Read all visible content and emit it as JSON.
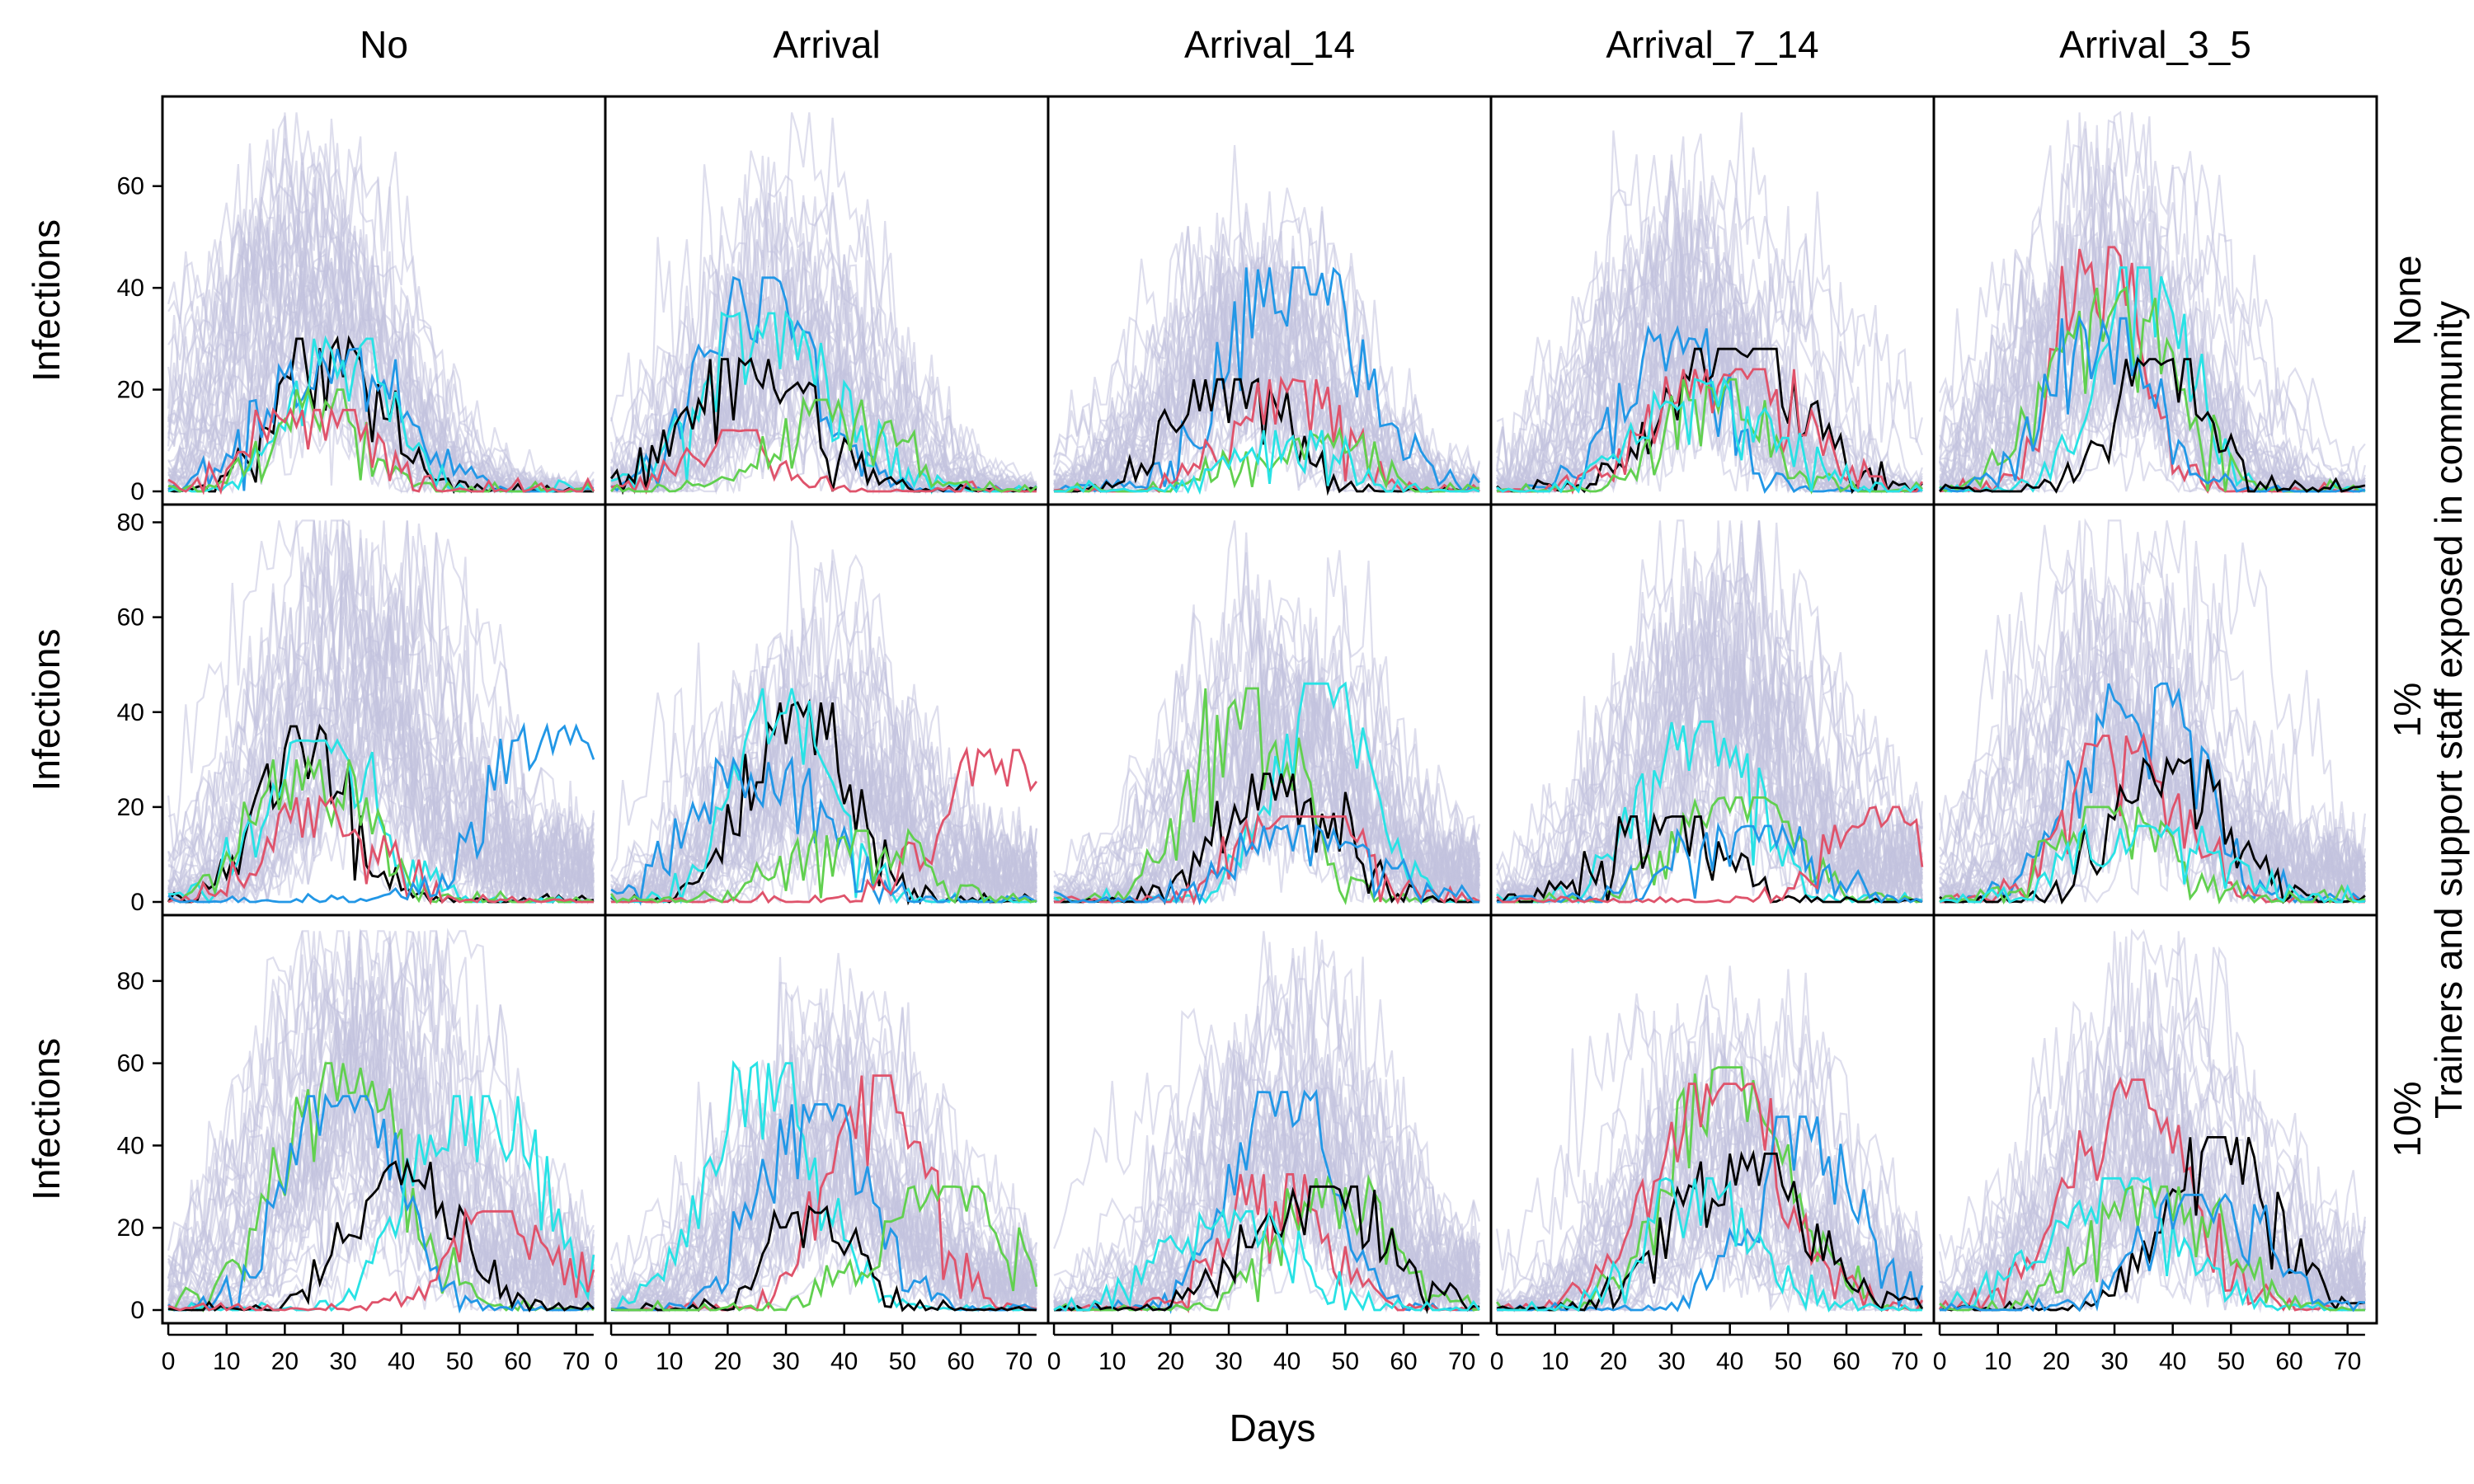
{
  "chart_data": {
    "type": "line",
    "columns": [
      "No",
      "Arrival",
      "Arrival_14",
      "Arrival_7_14",
      "Arrival_3_5"
    ],
    "rows": [
      {
        "label_lines": [
          "None"
        ],
        "yticks": [
          0,
          20,
          40,
          60
        ],
        "ylim": [
          0,
          76
        ]
      },
      {
        "label_lines": [
          "1%"
        ],
        "yticks": [
          0,
          20,
          40,
          60,
          80
        ],
        "ylim": [
          0,
          82
        ]
      },
      {
        "label_lines": [
          "10%",
          "Trainers and support staff exposed in community"
        ],
        "yticks": [
          0,
          20,
          40,
          60,
          80
        ],
        "ylim": [
          0,
          94
        ]
      }
    ],
    "right_axis_title": "Trainers and support staff exposed in community",
    "ylabel": "Infections",
    "xlabel": "Days",
    "xlim": [
      -1,
      75
    ],
    "xticks": [
      0,
      10,
      20,
      30,
      40,
      50,
      60,
      70
    ],
    "grid": false,
    "background_series": {
      "description_color": "#c3c3de",
      "count_per_panel": 40
    },
    "highlight_colors": {
      "red": "#df536b",
      "green": "#61d04f",
      "blue": "#2297e6",
      "cyan": "#28e2e5",
      "black": "#000000"
    },
    "panels": [
      {
        "row": 0,
        "col": 0,
        "peak_mean": 24,
        "peak_max": 71,
        "highlights": {
          "black": [
            28,
            30
          ],
          "blue": [
            28,
            28
          ],
          "cyan": [
            30,
            30
          ],
          "green": [
            26,
            20
          ],
          "red": [
            25,
            16
          ]
        }
      },
      {
        "row": 0,
        "col": 1,
        "peak_mean": 30,
        "peak_max": 61,
        "highlights": {
          "blue": [
            25,
            42
          ],
          "cyan": [
            28,
            35
          ],
          "black": [
            24,
            26
          ],
          "red": [
            20,
            12
          ],
          "green": [
            38,
            18
          ]
        }
      },
      {
        "row": 0,
        "col": 2,
        "peak_mean": 36,
        "peak_max": 61,
        "highlights": {
          "blue": [
            42,
            44
          ],
          "black": [
            30,
            22
          ],
          "red": [
            40,
            22
          ],
          "green": [
            44,
            12
          ],
          "cyan": [
            40,
            12
          ]
        }
      },
      {
        "row": 0,
        "col": 3,
        "peak_mean": 36,
        "peak_max": 67,
        "highlights": {
          "blue": [
            30,
            32
          ],
          "black": [
            42,
            28
          ],
          "red": [
            40,
            24
          ],
          "green": [
            38,
            22
          ],
          "cyan": [
            36,
            22
          ]
        }
      },
      {
        "row": 0,
        "col": 4,
        "peak_mean": 30,
        "peak_max": 75,
        "highlights": {
          "red": [
            28,
            48
          ],
          "cyan": [
            35,
            44
          ],
          "green": [
            30,
            40
          ],
          "blue": [
            28,
            34
          ],
          "black": [
            38,
            26
          ]
        }
      },
      {
        "row": 1,
        "col": 0,
        "peak_mean": 30,
        "peak_max": 78,
        "highlights": {
          "black": [
            23,
            37
          ],
          "cyan": [
            26,
            34
          ],
          "green": [
            24,
            30
          ],
          "red": [
            27,
            22
          ],
          "blue": [
            67,
            37
          ]
        }
      },
      {
        "row": 1,
        "col": 1,
        "peak_mean": 35,
        "peak_max": 64,
        "highlights": {
          "black": [
            32,
            42
          ],
          "cyan": [
            30,
            45
          ],
          "blue": [
            25,
            30
          ],
          "red": [
            66,
            32
          ],
          "green": [
            40,
            15
          ]
        }
      },
      {
        "row": 1,
        "col": 2,
        "peak_mean": 38,
        "peak_max": 62,
        "highlights": {
          "green": [
            32,
            45
          ],
          "cyan": [
            46,
            46
          ],
          "black": [
            39,
            27
          ],
          "red": [
            42,
            18
          ],
          "blue": [
            44,
            16
          ]
        }
      },
      {
        "row": 1,
        "col": 3,
        "peak_mean": 38,
        "peak_max": 72,
        "highlights": {
          "cyan": [
            35,
            38
          ],
          "green": [
            40,
            22
          ],
          "black": [
            28,
            18
          ],
          "blue": [
            42,
            16
          ],
          "red": [
            65,
            20
          ]
        }
      },
      {
        "row": 1,
        "col": 4,
        "peak_mean": 30,
        "peak_max": 72,
        "highlights": {
          "blue": [
            34,
            46
          ],
          "red": [
            32,
            35
          ],
          "black": [
            40,
            30
          ],
          "green": [
            30,
            20
          ],
          "cyan": [
            36,
            16
          ]
        }
      },
      {
        "row": 2,
        "col": 0,
        "peak_mean": 32,
        "peak_max": 92,
        "highlights": {
          "green": [
            29,
            60
          ],
          "blue": [
            30,
            52
          ],
          "cyan": [
            53,
            52
          ],
          "black": [
            40,
            36
          ],
          "red": [
            57,
            24
          ]
        }
      },
      {
        "row": 2,
        "col": 1,
        "peak_mean": 35,
        "peak_max": 79,
        "highlights": {
          "cyan": [
            26,
            60
          ],
          "red": [
            46,
            57
          ],
          "blue": [
            35,
            50
          ],
          "black": [
            35,
            25
          ],
          "green": [
            57,
            30
          ]
        }
      },
      {
        "row": 2,
        "col": 2,
        "peak_mean": 38,
        "peak_max": 79,
        "highlights": {
          "blue": [
            39,
            53
          ],
          "red": [
            38,
            33
          ],
          "green": [
            48,
            32
          ],
          "black": [
            46,
            30
          ],
          "cyan": [
            30,
            24
          ]
        }
      },
      {
        "row": 2,
        "col": 3,
        "peak_mean": 38,
        "peak_max": 80,
        "highlights": {
          "green": [
            40,
            59
          ],
          "red": [
            38,
            55
          ],
          "blue": [
            53,
            47
          ],
          "black": [
            42,
            38
          ],
          "cyan": [
            35,
            32
          ]
        }
      },
      {
        "row": 2,
        "col": 4,
        "peak_mean": 35,
        "peak_max": 78,
        "highlights": {
          "red": [
            32,
            56
          ],
          "black": [
            48,
            42
          ],
          "cyan": [
            30,
            32
          ],
          "green": [
            38,
            30
          ],
          "blue": [
            45,
            28
          ]
        }
      }
    ]
  }
}
